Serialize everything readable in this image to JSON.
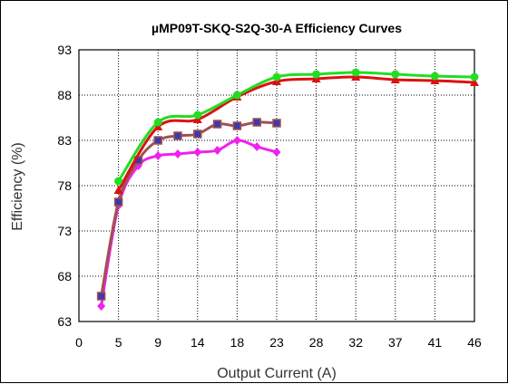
{
  "chart_data": {
    "type": "line",
    "title": "µMP09T-SKQ-S2Q-30-A Efficiency Curves",
    "xlabel": "Output Current (A)",
    "ylabel": "Efficiency (%)",
    "xlim": [
      0,
      46
    ],
    "ylim": [
      63,
      93
    ],
    "x_tick_labels": [
      "0",
      "5",
      "9",
      "14",
      "18",
      "23",
      "28",
      "32",
      "37",
      "41",
      "46"
    ],
    "y_tick_labels": [
      "93",
      "88",
      "83",
      "78",
      "73",
      "68",
      "63"
    ],
    "grid": true,
    "legend": "none",
    "series": [
      {
        "color": "#22dd22",
        "marker": "circle",
        "points": [
          [
            4.6,
            78.5
          ],
          [
            9.2,
            85.0
          ],
          [
            13.8,
            85.8
          ],
          [
            18.4,
            88.0
          ],
          [
            23.0,
            90.0
          ],
          [
            27.6,
            90.3
          ],
          [
            32.2,
            90.5
          ],
          [
            36.8,
            90.3
          ],
          [
            41.4,
            90.1
          ],
          [
            46.0,
            90.0
          ]
        ]
      },
      {
        "color": "#dd1111",
        "marker": "triangle",
        "points": [
          [
            4.6,
            77.5
          ],
          [
            9.2,
            84.5
          ],
          [
            13.8,
            85.3
          ],
          [
            18.4,
            87.8
          ],
          [
            23.0,
            89.5
          ],
          [
            27.6,
            89.8
          ],
          [
            32.2,
            90.0
          ],
          [
            36.8,
            89.7
          ],
          [
            41.4,
            89.6
          ],
          [
            46.0,
            89.4
          ]
        ]
      },
      {
        "color": "#a05050",
        "marker": "square",
        "points": [
          [
            2.6,
            65.8
          ],
          [
            4.6,
            76.2
          ],
          [
            6.9,
            80.8
          ],
          [
            9.2,
            83.0
          ],
          [
            11.5,
            83.5
          ],
          [
            13.8,
            83.7
          ],
          [
            16.1,
            84.8
          ],
          [
            18.4,
            84.6
          ],
          [
            20.7,
            85.0
          ],
          [
            23.0,
            84.9
          ]
        ]
      },
      {
        "color": "#ee22ee",
        "marker": "diamond",
        "points": [
          [
            2.6,
            64.7
          ],
          [
            4.6,
            75.8
          ],
          [
            6.9,
            80.2
          ],
          [
            9.2,
            81.3
          ],
          [
            11.5,
            81.5
          ],
          [
            13.8,
            81.7
          ],
          [
            16.1,
            81.9
          ],
          [
            18.4,
            83.0
          ],
          [
            20.7,
            82.3
          ],
          [
            23.0,
            81.7
          ]
        ]
      }
    ]
  }
}
